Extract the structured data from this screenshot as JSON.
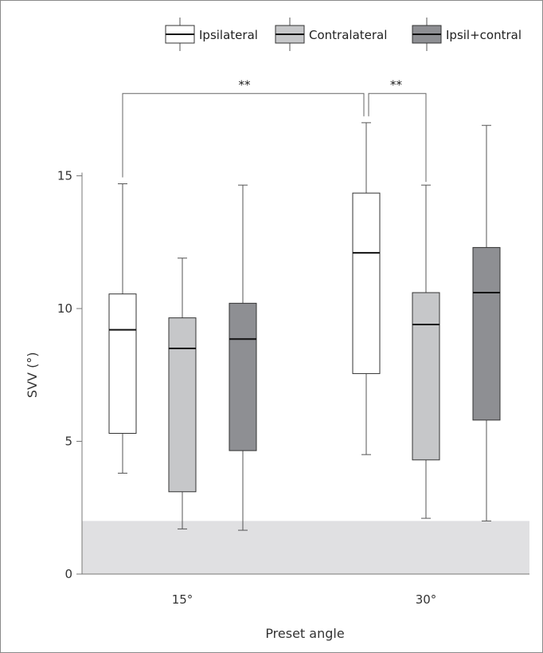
{
  "chart_data": {
    "type": "box",
    "xlabel": "Preset angle",
    "ylabel": "SVV (°)",
    "ylim": [
      0,
      15
    ],
    "yticks": [
      "0",
      "5",
      "10",
      "15"
    ],
    "categories": [
      "15°",
      "30°"
    ],
    "series": [
      {
        "name": "Ipsilateral",
        "color": "#ffffff",
        "boxes": [
          {
            "min": 3.8,
            "q1": 5.3,
            "median": 9.2,
            "q3": 10.55,
            "max": 14.7
          },
          {
            "min": 4.5,
            "q1": 7.55,
            "median": 12.1,
            "q3": 14.35,
            "max": 17.0
          }
        ]
      },
      {
        "name": "Contralateral",
        "color": "#c6c7c9",
        "boxes": [
          {
            "min": 1.7,
            "q1": 3.1,
            "median": 8.5,
            "q3": 9.65,
            "max": 11.9
          },
          {
            "min": 2.1,
            "q1": 4.3,
            "median": 9.4,
            "q3": 10.6,
            "max": 14.65
          }
        ]
      },
      {
        "name": "Ipsil+contral",
        "color": "#8e8f93",
        "boxes": [
          {
            "min": 1.65,
            "q1": 4.65,
            "median": 8.85,
            "q3": 10.2,
            "max": 14.65
          },
          {
            "min": 2.0,
            "q1": 5.8,
            "median": 10.6,
            "q3": 12.3,
            "max": 16.9
          }
        ]
      }
    ],
    "shaded_band": [
      0,
      2
    ],
    "shaded_color": "#e0e0e2",
    "significance": [
      {
        "label": "**",
        "from_category": 0,
        "from_series": 0,
        "to_category": 1,
        "to_series": 0,
        "level": 18.1
      },
      {
        "label": "**",
        "from_category": 1,
        "from_series": 0,
        "to_category": 1,
        "to_series": 1,
        "level": 18.1
      }
    ],
    "legend_position": "top-right"
  }
}
